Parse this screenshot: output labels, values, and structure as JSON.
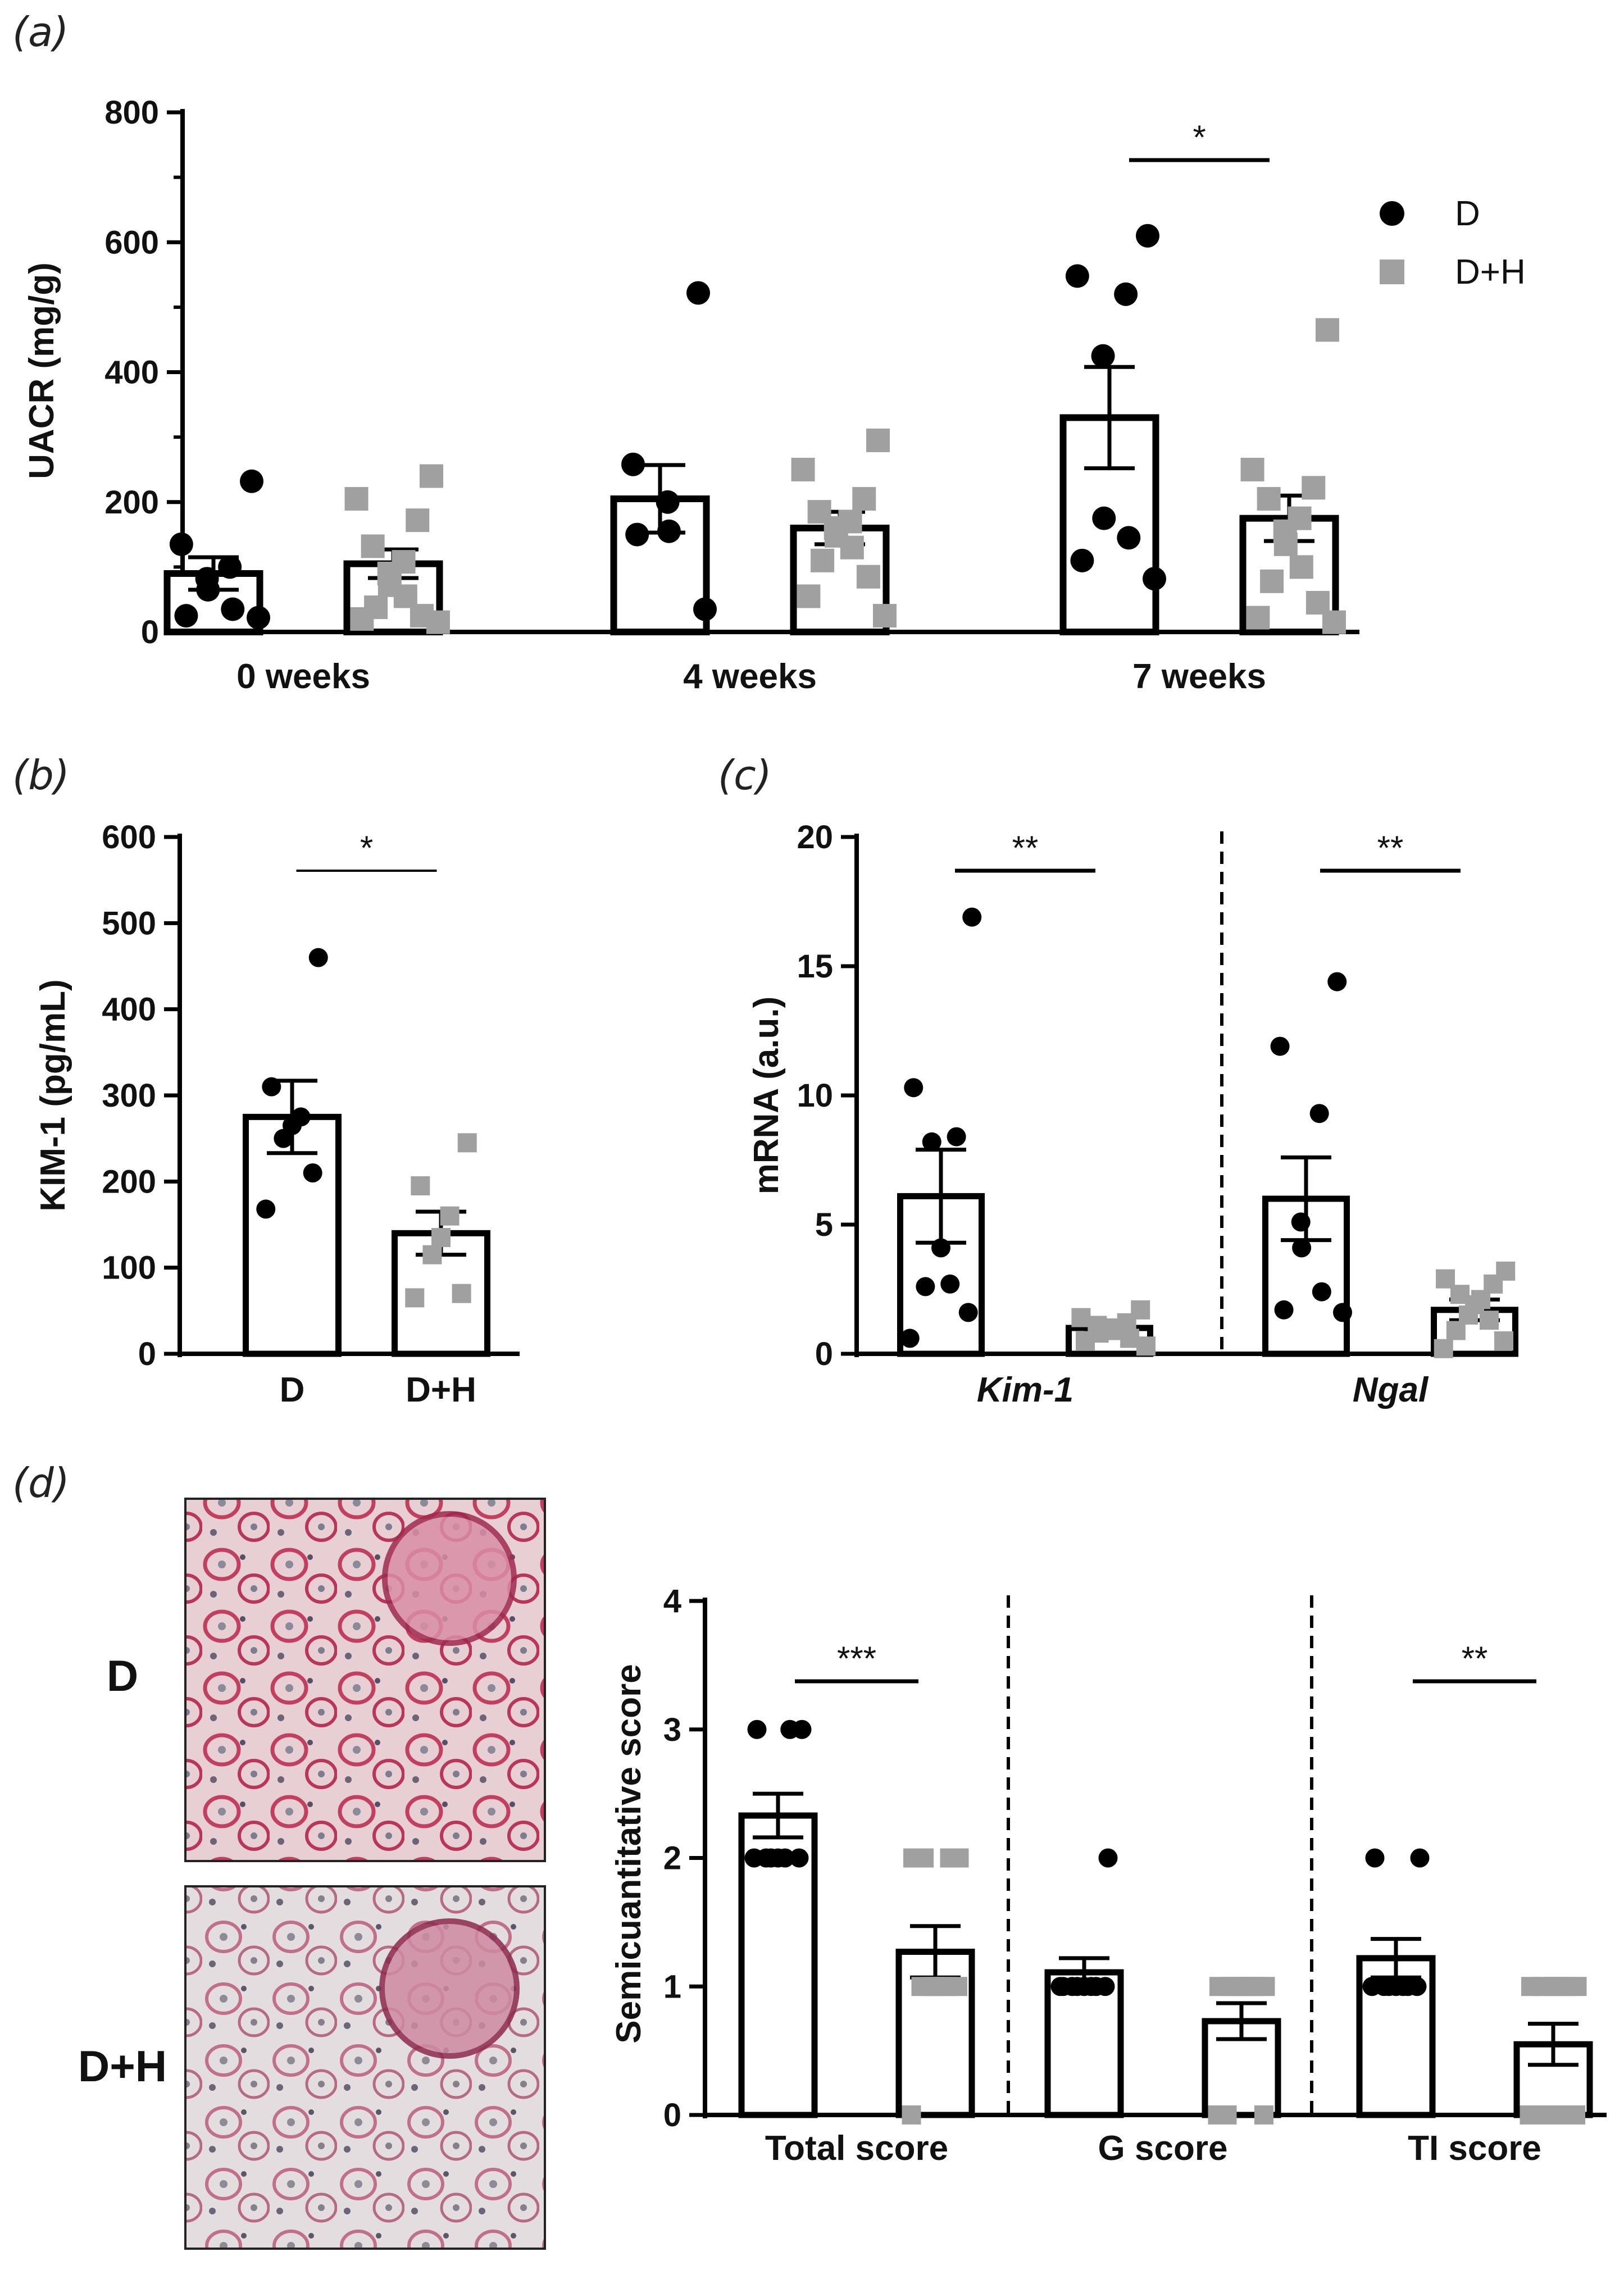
{
  "panels": {
    "a": "(a)",
    "b": "(b)",
    "c": "(c)",
    "d": "(d)"
  },
  "colors": {
    "D": "#000000",
    "D_H": "#a0a0a0",
    "axis": "#000000"
  },
  "legend": {
    "items": [
      {
        "label": "D",
        "marker": "circle"
      },
      {
        "label": "D+H",
        "marker": "square"
      }
    ]
  },
  "histology": {
    "labels": [
      "D",
      "D+H"
    ]
  },
  "chart_data": [
    {
      "id": "a",
      "type": "bar",
      "ylabel": "UACR (mg/g)",
      "ylim": [
        0,
        800
      ],
      "yticks": [
        "0",
        "200",
        "400",
        "600",
        "800"
      ],
      "minor_ticks": [
        100,
        300,
        500,
        700
      ],
      "categories": [
        "0 weeks",
        "4 weeks",
        "7 weeks"
      ],
      "series": [
        {
          "name": "D",
          "marker": "circle",
          "means": [
            90,
            205,
            330
          ],
          "sem": [
            25,
            52,
            78
          ],
          "points": [
            [
              232,
              135,
              100,
              82,
              65,
              35,
              25,
              22
            ],
            [
              522,
              258,
              200,
              155,
              150,
              35
            ],
            [
              610,
              548,
              520,
              425,
              175,
              145,
              110,
              82
            ]
          ]
        },
        {
          "name": "D+H",
          "marker": "square",
          "means": [
            105,
            160,
            175
          ],
          "sem": [
            22,
            25,
            35
          ],
          "points": [
            [
              240,
              205,
              172,
              132,
              108,
              90,
              72,
              55,
              38,
              25,
              20,
              15
            ],
            [
              295,
              250,
              205,
              185,
              170,
              160,
              148,
              130,
              110,
              85,
              55,
              25
            ],
            [
              465,
              250,
              222,
              205,
              175,
              155,
              135,
              100,
              78,
              45,
              22,
              15
            ]
          ]
        }
      ],
      "significance": [
        {
          "group": 2,
          "label": "*"
        }
      ]
    },
    {
      "id": "b",
      "type": "bar",
      "ylabel": "KIM-1 (pg/mL)",
      "ylim": [
        0,
        600
      ],
      "yticks": [
        "0",
        "100",
        "200",
        "300",
        "400",
        "500",
        "600"
      ],
      "categories": [
        "D",
        "D+H"
      ],
      "series": [
        {
          "name": "D",
          "marker": "circle",
          "mean": 275,
          "sem": 42,
          "points": [
            460,
            310,
            275,
            265,
            250,
            210,
            168
          ]
        },
        {
          "name": "D+H",
          "marker": "square",
          "mean": 140,
          "sem": 25,
          "points": [
            245,
            195,
            160,
            135,
            115,
            70,
            65
          ]
        }
      ],
      "significance": [
        {
          "label": "*"
        }
      ]
    },
    {
      "id": "c",
      "type": "bar",
      "ylabel": "mRNA (a.u.)",
      "ylim": [
        0,
        20
      ],
      "yticks": [
        "0",
        "5",
        "10",
        "15",
        "20"
      ],
      "categories": [
        "Kim-1",
        "Ngal"
      ],
      "series": [
        {
          "name": "D",
          "marker": "circle",
          "means": [
            6.1,
            6.0
          ],
          "sem": [
            1.8,
            1.6
          ],
          "points": [
            [
              16.9,
              10.3,
              8.4,
              8.2,
              4.1,
              2.7,
              2.6,
              1.6,
              0.6
            ],
            [
              14.4,
              11.9,
              9.3,
              5.1,
              4.1,
              2.4,
              1.7,
              1.6
            ]
          ]
        },
        {
          "name": "D+H",
          "marker": "square",
          "means": [
            1.0,
            1.7
          ],
          "sem": [
            0.2,
            0.4
          ],
          "points": [
            [
              1.7,
              1.4,
              1.2,
              1.1,
              1.0,
              0.9,
              0.8,
              0.6,
              0.5,
              0.3
            ],
            [
              3.2,
              2.9,
              2.7,
              2.3,
              2.1,
              1.9,
              1.5,
              1.3,
              0.9,
              0.5,
              0.2
            ]
          ]
        }
      ],
      "significance": [
        {
          "group": 0,
          "label": "**"
        },
        {
          "group": 1,
          "label": "**"
        }
      ]
    },
    {
      "id": "d",
      "type": "bar",
      "ylabel": "Semicuantitative score",
      "ylim": [
        0,
        4
      ],
      "yticks": [
        "0",
        "1",
        "2",
        "3",
        "4"
      ],
      "categories": [
        "Total score",
        "G score",
        "TI score"
      ],
      "series": [
        {
          "name": "D",
          "marker": "circle",
          "means": [
            2.33,
            1.11,
            1.22
          ],
          "sem": [
            0.17,
            0.11,
            0.15
          ],
          "points": [
            [
              3,
              3,
              3,
              2,
              2,
              2,
              2,
              2,
              2
            ],
            [
              2,
              1,
              1,
              1,
              1,
              1,
              1,
              1,
              1
            ],
            [
              2,
              2,
              1,
              1,
              1,
              1,
              1,
              1,
              1
            ]
          ]
        },
        {
          "name": "D+H",
          "marker": "square",
          "means": [
            1.27,
            0.73,
            0.55
          ],
          "sem": [
            0.2,
            0.14,
            0.16
          ],
          "points": [
            [
              2,
              2,
              2,
              2,
              1,
              1,
              1,
              1,
              1,
              1,
              0
            ],
            [
              1,
              1,
              1,
              1,
              1,
              1,
              1,
              1,
              0,
              0,
              0
            ],
            [
              1,
              1,
              1,
              1,
              1,
              1,
              0,
              0,
              0,
              0,
              0
            ]
          ]
        }
      ],
      "significance": [
        {
          "group": 0,
          "label": "***"
        },
        {
          "group": 2,
          "label": "**"
        }
      ]
    }
  ]
}
